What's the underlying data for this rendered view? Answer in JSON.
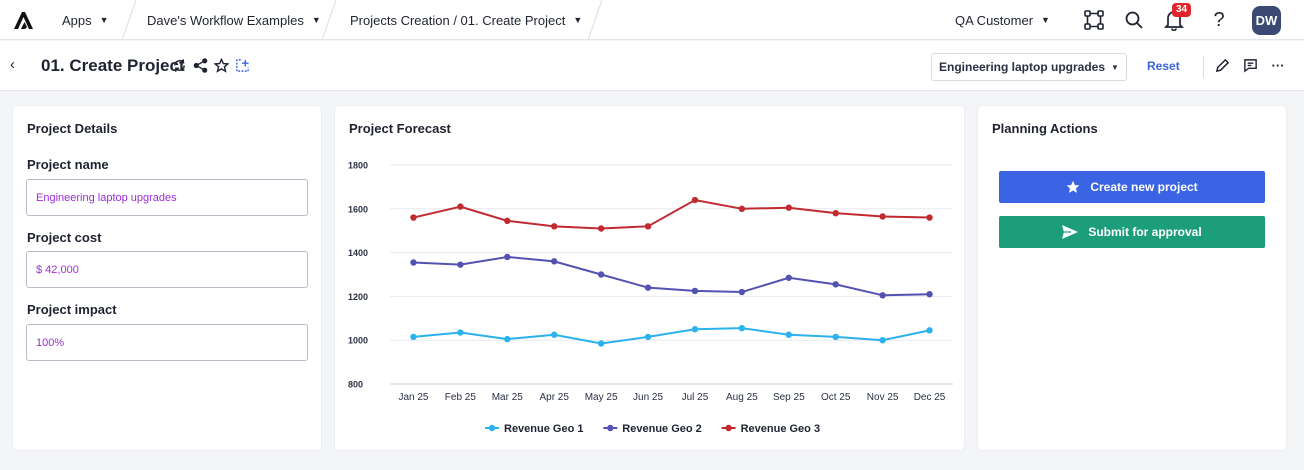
{
  "nav": {
    "apps_label": "Apps",
    "workspace_label": "Dave's Workflow Examples",
    "page_path_label": "Projects Creation / 01. Create Project",
    "customer_label": "QA Customer",
    "notification_count": "34",
    "help_label": "?",
    "avatar_initials": "DW"
  },
  "header": {
    "title": "01. Create Project",
    "context_select": "Engineering laptop upgrades",
    "reset_label": "Reset"
  },
  "details": {
    "title": "Project Details",
    "name_label": "Project name",
    "name_value": "Engineering laptop upgrades",
    "cost_label": "Project cost",
    "cost_value": "$ 42,000",
    "impact_label": "Project impact",
    "impact_value": "100%"
  },
  "forecast": {
    "title": "Project Forecast"
  },
  "actions": {
    "title": "Planning Actions",
    "create_label": "Create new project",
    "submit_label": "Submit for approval"
  },
  "chart_data": {
    "type": "line",
    "categories": [
      "Jan 25",
      "Feb 25",
      "Mar 25",
      "Apr 25",
      "May 25",
      "Jun 25",
      "Jul 25",
      "Aug 25",
      "Sep 25",
      "Oct 25",
      "Nov 25",
      "Dec 25"
    ],
    "ylim": [
      800,
      1800
    ],
    "yticks": [
      "800",
      "1000",
      "1200",
      "1400",
      "1600",
      "1800"
    ],
    "grid": true,
    "legend_position": "bottom",
    "series": [
      {
        "name": "Revenue Geo 1",
        "color": "#2bb1ee",
        "values": [
          1015,
          1035,
          1005,
          1025,
          985,
          1015,
          1050,
          1055,
          1025,
          1015,
          1000,
          1045
        ]
      },
      {
        "name": "Revenue Geo 2",
        "color": "#5352b0",
        "values": [
          1355,
          1345,
          1380,
          1360,
          1300,
          1240,
          1225,
          1220,
          1285,
          1255,
          1205,
          1210
        ]
      },
      {
        "name": "Revenue Geo 3",
        "color": "#c02a30",
        "values": [
          1560,
          1610,
          1545,
          1520,
          1510,
          1520,
          1640,
          1600,
          1605,
          1580,
          1565,
          1560
        ]
      }
    ]
  }
}
